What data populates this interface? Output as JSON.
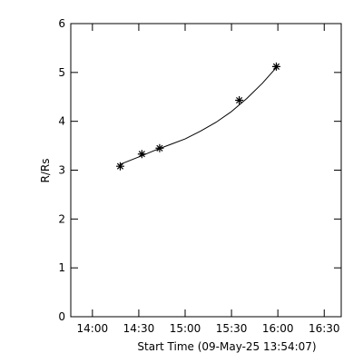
{
  "chart_data": {
    "type": "scatter",
    "x_label": "Start Time (09-May-25 13:54:07)",
    "y_label": "R/Rs",
    "series": [
      {
        "color": "#000000",
        "marker": "asterisk",
        "x": [
          18,
          32,
          43.5,
          95,
          119
        ],
        "values": [
          3.08,
          3.33,
          3.45,
          4.43,
          5.12
        ]
      },
      {
        "color": "#000000",
        "marker": "line",
        "x": [
          18,
          30,
          40,
          50,
          60,
          70,
          80,
          90,
          100,
          110,
          119
        ],
        "values": [
          3.12,
          3.27,
          3.4,
          3.52,
          3.64,
          3.8,
          3.98,
          4.2,
          4.47,
          4.78,
          5.1
        ]
      }
    ],
    "xlim": [
      -14,
      161
    ],
    "xticks": [
      {
        "value": 0,
        "label": "14:00"
      },
      {
        "value": 30,
        "label": "14:30"
      },
      {
        "value": 60,
        "label": "15:00"
      },
      {
        "value": 90,
        "label": "15:30"
      },
      {
        "value": 120,
        "label": "16:00"
      },
      {
        "value": 150,
        "label": "16:30"
      }
    ],
    "ylim": [
      0,
      6
    ],
    "yticks": [
      0,
      1,
      2,
      3,
      4,
      5,
      6
    ]
  }
}
